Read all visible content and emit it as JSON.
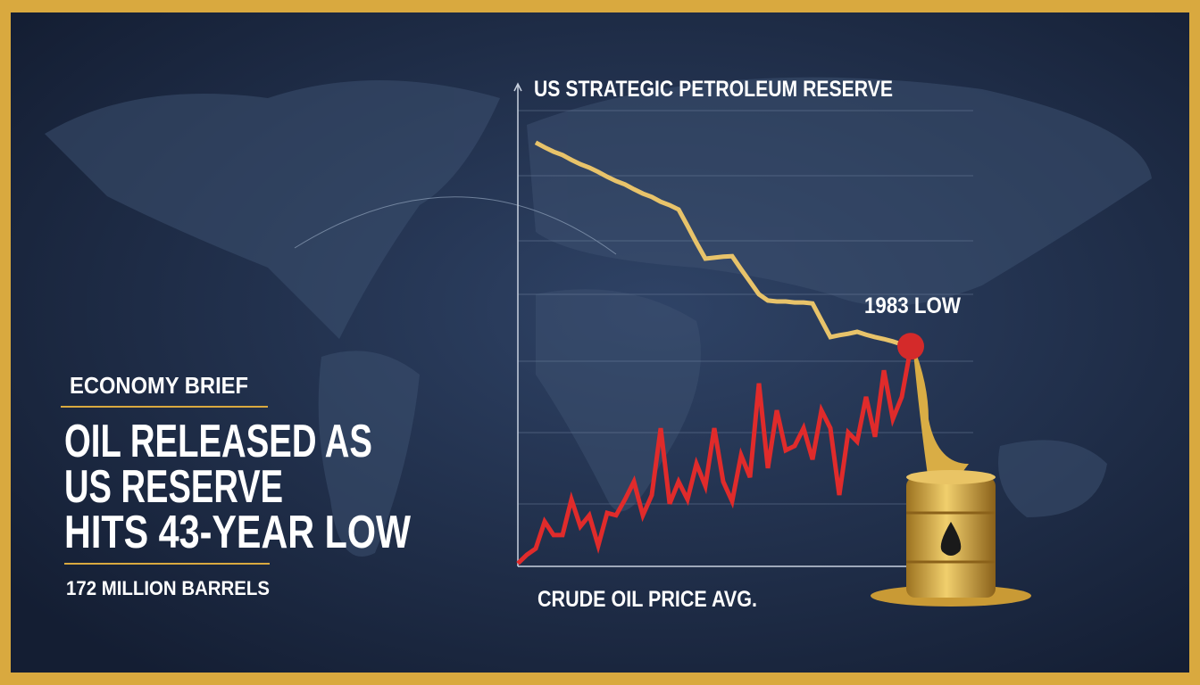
{
  "chart_data": {
    "type": "line",
    "categories": [
      null,
      null,
      null,
      null,
      null,
      null,
      null,
      null,
      null,
      null,
      null,
      null,
      null,
      null,
      null,
      null,
      null,
      null,
      null,
      null,
      null,
      null,
      null,
      null,
      null,
      null,
      null,
      null,
      null,
      null,
      null,
      null,
      null,
      null,
      null,
      null,
      null,
      null,
      null,
      null,
      null,
      null,
      null,
      null,
      null
    ],
    "series": [
      {
        "name": "US STRATEGIC PETROLEUM RESERVE",
        "color": "#e8c36a",
        "values": [
          null,
          null,
          88,
          87,
          86.1,
          85.4,
          84.4,
          83.5,
          82.8,
          81.9,
          80.9,
          80,
          79.3,
          78.3,
          77.4,
          76.7,
          75.7,
          75,
          74.1,
          70.7,
          67.2,
          63.9,
          64.1,
          64.3,
          64.4,
          61.7,
          59.1,
          56.5,
          55.2,
          55,
          55,
          54.8,
          54.8,
          54.6,
          51.1,
          47.6,
          48,
          48.3,
          48.7,
          48.1,
          47.6,
          47.2,
          46.7,
          46.1,
          45.7
        ]
      },
      {
        "name": "CRUDE OIL PRICE AVG.",
        "color": "#e02b2b",
        "values": [
          0.6,
          2.4,
          3.7,
          9.3,
          6.5,
          6.5,
          13.9,
          8.3,
          10.6,
          4.3,
          11.1,
          10.6,
          13.9,
          17.6,
          10.6,
          14.8,
          28.7,
          13,
          17.6,
          13.9,
          21.3,
          16.7,
          28.7,
          17.6,
          13.5,
          23.1,
          18.5,
          38,
          20.4,
          32.4,
          24.1,
          25,
          28.7,
          22.2,
          32.4,
          28.7,
          14.8,
          27.8,
          25.9,
          35.2,
          26.9,
          40.7,
          30.6,
          35.2,
          45.4
        ]
      }
    ],
    "ylim": [
      0,
      100
    ],
    "annotation": "1983 LOW"
  },
  "sidebar": {
    "kicker": "ECONOMY BRIEF",
    "headline": [
      "OIL RELEASED AS",
      "US RESERVE",
      "HITS 43-YEAR LOW"
    ],
    "subtext": "172 MILLION BARRELS"
  }
}
